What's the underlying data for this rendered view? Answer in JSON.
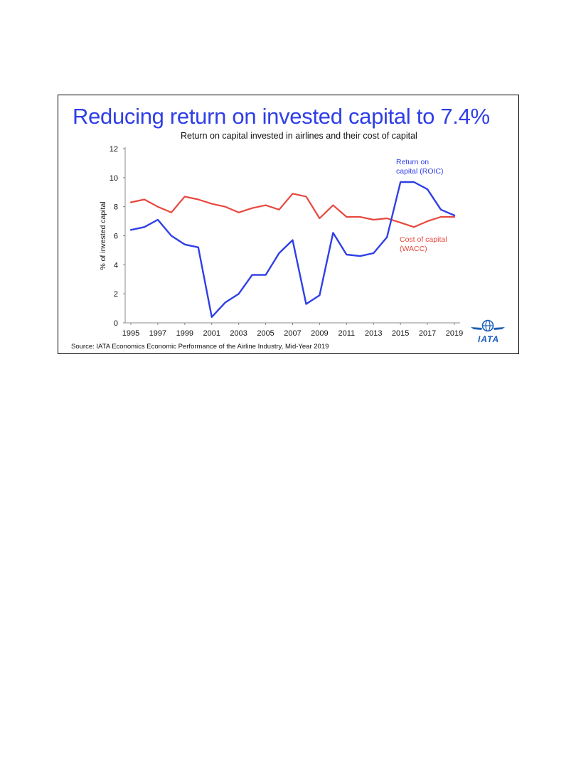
{
  "colors": {
    "title": "#2f3fe6",
    "roic": "#2f3fe6",
    "wacc": "#e8473e",
    "logo": "#1e5fb8"
  },
  "logo_text": "IATA",
  "source": "Source: IATA Economics Economic Performance of the Airline Industry, Mid-Year 2019",
  "chart_data": {
    "type": "line",
    "title": "Reducing return on invested capital to 7.4%",
    "subtitle": "Return on capital invested in airlines and their cost of capital",
    "xlabel": "",
    "ylabel": "% of invested capital",
    "ylim": [
      0,
      12
    ],
    "yticks": [
      "0",
      "2",
      "4",
      "6",
      "8",
      "10",
      "12"
    ],
    "xticks": [
      "1995",
      "1997",
      "1999",
      "2001",
      "2003",
      "2005",
      "2007",
      "2009",
      "2011",
      "2013",
      "2015",
      "2017",
      "2019"
    ],
    "grid": false,
    "x": [
      1995,
      1996,
      1997,
      1998,
      1999,
      2000,
      2001,
      2002,
      2003,
      2004,
      2005,
      2006,
      2007,
      2008,
      2009,
      2010,
      2011,
      2012,
      2013,
      2014,
      2015,
      2016,
      2017,
      2018,
      2019
    ],
    "series": [
      {
        "name": "Return on capital (ROIC)",
        "label_lines": [
          "Return on",
          "capital (ROIC)"
        ],
        "values": [
          6.4,
          6.6,
          7.1,
          6.0,
          5.4,
          5.2,
          0.4,
          1.4,
          2.0,
          3.3,
          3.3,
          4.8,
          5.7,
          1.3,
          1.9,
          6.2,
          4.7,
          4.6,
          4.8,
          5.9,
          9.7,
          9.7,
          9.2,
          7.8,
          7.4
        ]
      },
      {
        "name": "Cost of capital (WACC)",
        "label_lines": [
          "Cost of capital",
          "(WACC)"
        ],
        "values": [
          8.3,
          8.5,
          8.0,
          7.6,
          8.7,
          8.5,
          8.2,
          8.0,
          7.6,
          7.9,
          8.1,
          7.8,
          8.9,
          8.7,
          7.2,
          8.1,
          7.3,
          7.3,
          7.1,
          7.2,
          6.9,
          6.6,
          7.0,
          7.3,
          7.3
        ]
      }
    ]
  }
}
